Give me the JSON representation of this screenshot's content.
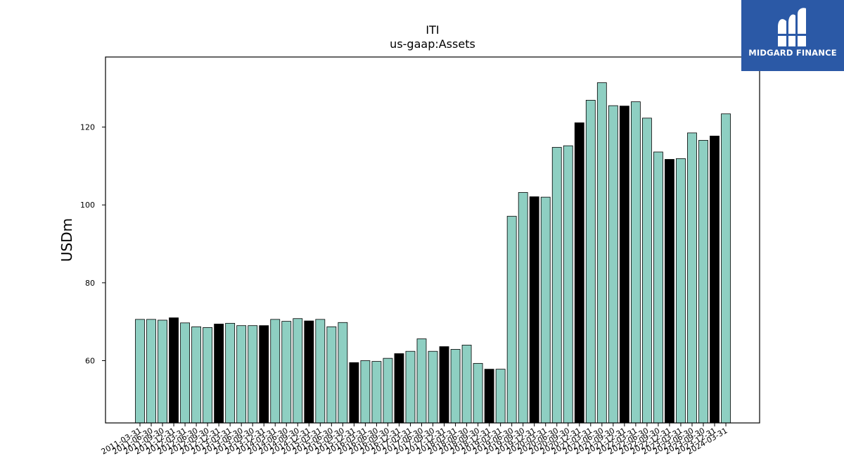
{
  "chart_data": {
    "type": "bar",
    "title": "ITI",
    "subtitle": "us-gaap:Assets",
    "xlabel": "",
    "ylabel": "USDm",
    "ylim": [
      44,
      138
    ],
    "yticks": [
      60,
      80,
      100,
      120
    ],
    "grid": false,
    "colors": {
      "default": "#8ecfc2",
      "highlight": "#000000",
      "edge": "#000000"
    },
    "categories": [
      "2011-03-31",
      "2011-06-30",
      "2011-09-30",
      "2011-12-31",
      "2012-03-31",
      "2012-06-30",
      "2012-09-30",
      "2012-12-31",
      "2013-03-31",
      "2013-06-30",
      "2013-09-30",
      "2013-12-31",
      "2014-03-31",
      "2014-06-30",
      "2014-09-30",
      "2014-12-31",
      "2015-03-31",
      "2015-06-30",
      "2015-09-30",
      "2015-12-31",
      "2016-03-31",
      "2016-06-30",
      "2016-09-30",
      "2016-12-31",
      "2017-03-31",
      "2017-06-30",
      "2017-09-30",
      "2017-12-31",
      "2018-03-31",
      "2018-06-30",
      "2018-09-30",
      "2018-12-31",
      "2019-03-31",
      "2019-06-30",
      "2019-09-30",
      "2019-12-31",
      "2020-03-31",
      "2020-06-30",
      "2020-09-30",
      "2020-12-31",
      "2021-03-31",
      "2021-06-30",
      "2021-09-30",
      "2021-12-31",
      "2022-03-31",
      "2022-06-30",
      "2022-09-30",
      "2022-12-31",
      "2023-03-31",
      "2023-06-30",
      "2023-09-30",
      "2023-12-31",
      "2024-03-31"
    ],
    "values": [
      70.6,
      70.6,
      70.4,
      71.0,
      69.7,
      68.7,
      68.5,
      69.4,
      69.6,
      69.0,
      69.0,
      69.0,
      70.6,
      70.1,
      70.8,
      70.2,
      70.6,
      68.7,
      69.8,
      59.5,
      60.0,
      59.8,
      60.6,
      61.8,
      62.4,
      65.6,
      62.4,
      63.6,
      62.9,
      64.0,
      59.3,
      57.8,
      57.8,
      97.1,
      103.2,
      102.1,
      102.0,
      114.8,
      115.2,
      121.1,
      126.9,
      131.4,
      125.5,
      125.4,
      126.5,
      122.3,
      113.6,
      111.7,
      111.9,
      118.5,
      116.6,
      117.7,
      123.4
    ],
    "highlight_indices": [
      3,
      7,
      11,
      15,
      19,
      23,
      27,
      31,
      35,
      39,
      43,
      47,
      51
    ]
  },
  "logo": {
    "text": "MIDGARD FINANCE"
  }
}
